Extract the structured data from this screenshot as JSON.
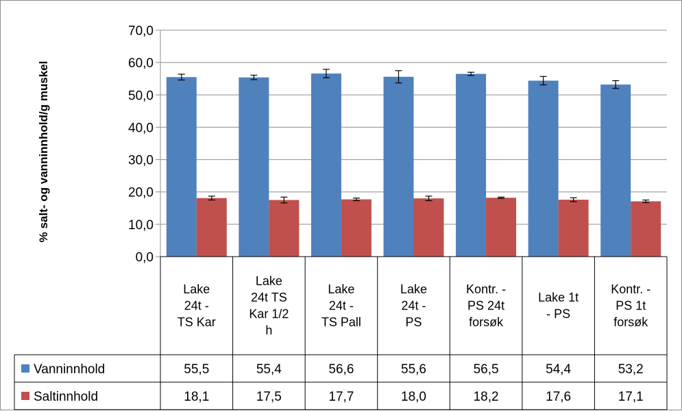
{
  "chart_data": {
    "type": "bar",
    "ylabel": "% salt- og vanninnhold/g muskel",
    "ylim": [
      0,
      70
    ],
    "yticks": [
      "0,0",
      "10,0",
      "20,0",
      "30,0",
      "40,0",
      "50,0",
      "60,0",
      "70,0"
    ],
    "grid": true,
    "legend": "data-table",
    "categories": [
      [
        "Lake",
        "24t -",
        "TS Kar"
      ],
      [
        "Lake",
        "24t TS",
        "Kar 1/2",
        "h"
      ],
      [
        "Lake",
        "24t -",
        "TS Pall"
      ],
      [
        "Lake",
        "24t -",
        "PS"
      ],
      [
        "Kontr. -",
        "PS 24t",
        "forsøk"
      ],
      [
        "Lake 1t",
        "- PS"
      ],
      [
        "Kontr. -",
        "PS 1t",
        "forsøk"
      ]
    ],
    "series": [
      {
        "name": "Vanninnhold",
        "color": "#4f81bd",
        "values": [
          55.5,
          55.4,
          56.6,
          55.6,
          56.5,
          54.4,
          53.2
        ],
        "labels": [
          "55,5",
          "55,4",
          "56,6",
          "55,6",
          "56,5",
          "54,4",
          "53,2"
        ],
        "errors": [
          0.9,
          0.7,
          1.3,
          1.9,
          0.5,
          1.3,
          1.2
        ]
      },
      {
        "name": "Saltinnhold",
        "color": "#c0504d",
        "values": [
          18.1,
          17.5,
          17.7,
          18.0,
          18.2,
          17.6,
          17.1
        ],
        "labels": [
          "18,1",
          "17,5",
          "17,7",
          "18,0",
          "18,2",
          "17,6",
          "17,1"
        ],
        "errors": [
          0.6,
          0.9,
          0.4,
          0.7,
          0.2,
          0.6,
          0.4
        ]
      }
    ]
  }
}
